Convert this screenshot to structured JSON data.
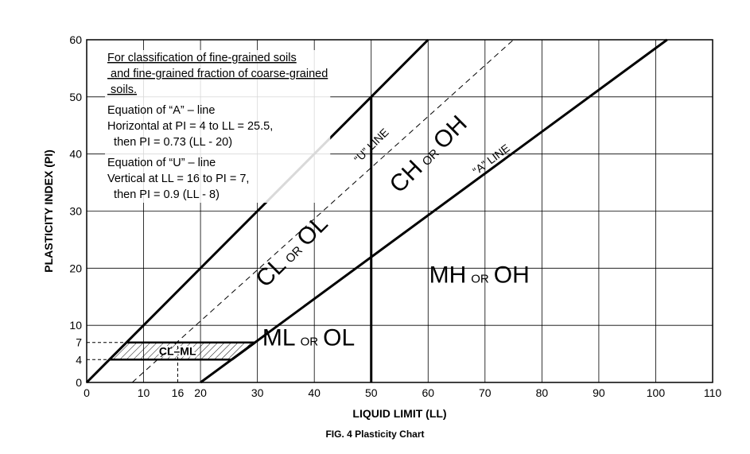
{
  "chart_data": {
    "type": "line",
    "title": "",
    "caption": "FIG. 4 Plasticity Chart",
    "xlabel": "LIQUID LIMIT (LL)",
    "ylabel": "PLASTICITY INDEX (PI)",
    "xlim": [
      0,
      110
    ],
    "ylim": [
      0,
      60
    ],
    "x_ticks": [
      0,
      10,
      20,
      30,
      40,
      50,
      60,
      70,
      80,
      90,
      100,
      110
    ],
    "y_ticks": [
      0,
      10,
      20,
      30,
      40,
      50,
      60
    ],
    "extra_x_ticks": [
      16
    ],
    "extra_y_ticks": [
      4,
      7
    ],
    "grid": true,
    "series": [
      {
        "name": "“A” LINE",
        "style": "solid",
        "points": [
          [
            20,
            0
          ],
          [
            102,
            60
          ]
        ]
      },
      {
        "name": "“U” LINE",
        "style": "dashed",
        "points": [
          [
            8,
            0
          ],
          [
            75,
            60
          ]
        ]
      },
      {
        "name": "",
        "style": "solid",
        "points": [
          [
            0,
            0
          ],
          [
            60,
            60
          ]
        ]
      },
      {
        "name": "",
        "style": "solid",
        "points": [
          [
            50,
            0
          ],
          [
            50,
            50
          ]
        ]
      }
    ],
    "cl_ml_zone": {
      "label": "CL–ML",
      "polygon": [
        [
          4,
          4
        ],
        [
          25.5,
          4
        ],
        [
          29.6,
          7
        ],
        [
          7,
          7
        ]
      ]
    },
    "reference_lines": [
      {
        "axis": "y",
        "value": 7,
        "from": 0,
        "to": 7
      },
      {
        "axis": "y",
        "value": 4,
        "from": 0,
        "to": 4
      },
      {
        "axis": "x",
        "value": 16,
        "from": 0,
        "to": 7
      }
    ],
    "zone_labels": [
      {
        "main1": "CL",
        "or": "OR",
        "main2": "OL",
        "x": 37,
        "y": 22,
        "rotate": -45,
        "size": 30
      },
      {
        "main1": "CH",
        "or": "OR",
        "main2": "OH",
        "x": 61,
        "y": 39,
        "rotate": -45,
        "size": 30
      },
      {
        "main1": "MH",
        "or": "OR",
        "main2": "OH",
        "x": 69,
        "y": 17.5,
        "rotate": 0,
        "size": 30
      },
      {
        "main1": "ML",
        "or": "OR",
        "main2": "OL",
        "x": 39,
        "y": 6.5,
        "rotate": 0,
        "size": 30
      }
    ],
    "line_labels": [
      {
        "text": "“U” LINE",
        "x": 50.5,
        "y": 41,
        "rotate": -45
      },
      {
        "text": "“A” LINE",
        "x": 71.5,
        "y": 38.5,
        "rotate": -37
      }
    ],
    "notes": [
      {
        "lines": [
          "For classification of fine-grained soils",
          " and fine-grained fraction of coarse-grained",
          " soils."
        ],
        "underline": true
      },
      {
        "lines": [
          "Equation of “A” – line",
          "Horizontal at PI = 4 to LL = 25.5,",
          "  then PI = 0.73 (LL - 20)"
        ],
        "underline": false
      },
      {
        "lines": [
          "Equation of “U” – line",
          "Vertical at LL = 16 to PI = 7,",
          "  then PI = 0.9 (LL - 8)"
        ],
        "underline": false
      }
    ]
  }
}
